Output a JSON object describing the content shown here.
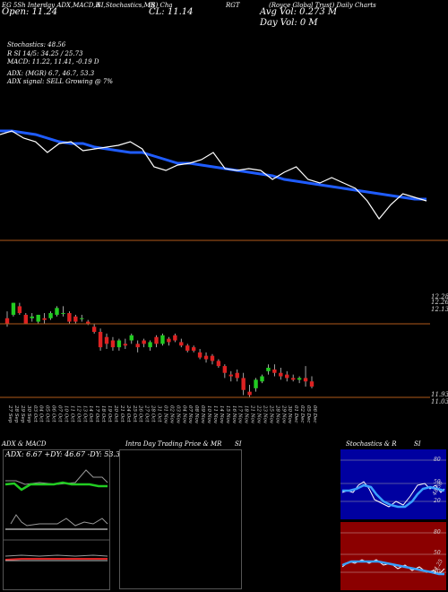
{
  "header": {
    "line1_left": "EG 5Sh Interday ADX,MACD,R",
    "line1_mid": "SI,Stochastics,MR",
    "line1_c": "(S) Cha",
    "line1_rgt": "RGT",
    "line1_right": "(Royce Global Trust) Daily Charts",
    "cl_label": "CL: 11.14",
    "open_label": "Open: 11.24",
    "avg_vol": "Avg Vol: 0.273  M",
    "day_vol": "Day Vol: 0   M",
    "stoch": "Stochastics: 48.56",
    "rsi": "R          SI 14/5: 34.25 / 25.73",
    "macd": "MACD: 11.22,  11.41,  -0.19 D",
    "adx": "ADX:                    (MGR) 6.7,  46.7,  53.3",
    "adx_signal": "ADX  signal: SELL Growing @ 7%"
  },
  "price_axis": {
    "top_a": "12.28",
    "top_b": "12.26",
    "mid": "12.13",
    "low_a": "11.93",
    "low_b": "11.03"
  },
  "dates": [
    "27 Sep",
    "28 Sep",
    "29 Sep",
    "30 Sep",
    "03 Oct",
    "04 Oct",
    "05 Oct",
    "06 Oct",
    "07 Oct",
    "10 Oct",
    "11 Oct",
    "12 Oct",
    "13 Oct",
    "14 Oct",
    "17 Oct",
    "18 Oct",
    "19 Oct",
    "20 Oct",
    "21 Oct",
    "24 Oct",
    "25 Oct",
    "26 Oct",
    "27 Oct",
    "28 Oct",
    "31 Oct",
    "01 Nov",
    "02 Nov",
    "03 Nov",
    "04 Nov",
    "07 Nov",
    "08 Nov",
    "09 Nov",
    "10 Nov",
    "11 Nov",
    "14 Nov",
    "15 Nov",
    "16 Nov",
    "17 Nov",
    "18 Nov",
    "21 Nov",
    "22 Nov",
    "23 Nov",
    "25 Nov",
    "28 Nov",
    "29 Nov",
    "30 Nov",
    "01 Dec",
    "02 Dec",
    "05 Dec",
    "06 Dec"
  ],
  "panels": {
    "adx_title": "ADX  & MACD",
    "adx_values": "ADX: 6.67  +DY: 46.67 -DY: 53.33",
    "intraday_title": "Intra  Day Trading Price  & MR",
    "intraday_si": "SI",
    "stoch_title": "Stochastics & R",
    "stoch_si": "SI",
    "stoch_ticks": [
      "80",
      "50",
      "20"
    ],
    "rsi_ticks": [
      "80",
      "50",
      "20"
    ],
    "stoch_value": "48.56",
    "rsi_value": "34.25"
  },
  "colors": {
    "ema": "#1f5cff",
    "price": "#ffffff",
    "up": "#22cc22",
    "down": "#dd2222",
    "axis_line": "#b05a1a",
    "rsi_bg": "#8b0000",
    "stoch_bg": "#0000a0"
  },
  "chart_data": [
    {
      "type": "line",
      "series": [
        {
          "values": [
            12.62,
            12.62,
            12.61,
            12.6,
            12.58,
            12.56,
            12.55,
            12.55,
            12.53,
            12.52,
            12.51,
            12.5,
            12.5,
            12.48,
            12.46,
            12.44,
            12.44,
            12.43,
            12.42,
            12.41,
            12.4,
            12.39,
            12.38,
            12.37,
            12.35,
            12.34,
            12.33,
            12.32,
            12.31,
            12.3,
            12.29,
            12.28,
            12.27,
            12.26,
            12.25,
            12.24,
            12.24
          ]
        },
        {
          "values": [
            12.6,
            12.62,
            12.58,
            12.56,
            12.5,
            12.55,
            12.56,
            12.51,
            12.52,
            12.53,
            12.54,
            12.56,
            12.52,
            12.42,
            12.4,
            12.43,
            12.44,
            12.46,
            12.5,
            12.41,
            12.4,
            12.41,
            12.4,
            12.35,
            12.39,
            12.42,
            12.35,
            12.33,
            12.36,
            12.33,
            12.3,
            12.23,
            12.13,
            12.21,
            12.27,
            12.25,
            12.23
          ]
        }
      ]
    },
    {
      "type": "candlestick",
      "series": [
        {
          "values": [
            [
              12.15,
              12.19,
              12.12,
              12.1
            ],
            [
              12.17,
              12.24,
              12.24,
              12.16
            ],
            [
              12.22,
              12.24,
              12.18,
              12.17
            ],
            [
              12.17,
              12.18,
              12.12,
              12.12
            ],
            [
              12.15,
              12.18,
              12.16,
              12.13
            ],
            [
              12.13,
              12.17,
              12.17,
              12.12
            ],
            [
              12.15,
              12.18,
              12.14,
              12.12
            ],
            [
              12.15,
              12.19,
              12.18,
              12.14
            ],
            [
              12.17,
              12.22,
              12.21,
              12.16
            ],
            [
              12.18,
              12.22,
              12.18,
              12.16
            ],
            [
              12.18,
              12.19,
              12.13,
              12.12
            ],
            [
              12.16,
              12.17,
              12.13,
              12.12
            ],
            [
              12.15,
              12.17,
              12.15,
              12.13
            ],
            [
              12.13,
              12.14,
              12.12,
              12.11
            ],
            [
              12.1,
              12.12,
              12.07,
              12.06
            ],
            [
              12.07,
              12.09,
              11.98,
              11.96
            ],
            [
              12.04,
              12.06,
              12.0,
              11.97
            ],
            [
              12.02,
              12.04,
              11.98,
              11.96
            ],
            [
              11.98,
              12.03,
              12.02,
              11.96
            ],
            [
              12.0,
              12.03,
              11.99,
              11.97
            ],
            [
              12.02,
              12.06,
              12.05,
              12.0
            ],
            [
              12.0,
              12.02,
              11.98,
              11.95
            ],
            [
              12.02,
              12.03,
              12.0,
              11.98
            ],
            [
              11.98,
              12.02,
              12.01,
              11.96
            ],
            [
              12.04,
              12.05,
              12.0,
              11.98
            ],
            [
              12.0,
              12.06,
              12.05,
              11.99
            ],
            [
              12.03,
              12.04,
              12.01,
              11.99
            ],
            [
              12.05,
              12.06,
              12.02,
              12.01
            ],
            [
              12.01,
              12.03,
              11.99,
              11.98
            ],
            [
              11.99,
              12.0,
              11.96,
              11.95
            ],
            [
              11.98,
              11.99,
              11.96,
              11.95
            ],
            [
              11.95,
              11.97,
              11.92,
              11.91
            ],
            [
              11.93,
              11.95,
              11.91,
              11.89
            ],
            [
              11.93,
              11.94,
              11.9,
              11.88
            ],
            [
              11.9,
              11.91,
              11.87,
              11.86
            ],
            [
              11.87,
              11.88,
              11.83,
              11.8
            ],
            [
              11.82,
              11.84,
              11.81,
              11.78
            ],
            [
              11.83,
              11.85,
              11.8,
              11.78
            ],
            [
              11.8,
              11.83,
              11.73,
              11.7
            ],
            [
              11.72,
              11.76,
              11.7,
              11.69
            ],
            [
              11.74,
              11.8,
              11.79,
              11.72
            ],
            [
              11.78,
              11.82,
              11.81,
              11.77
            ],
            [
              11.84,
              11.88,
              11.86,
              11.82
            ],
            [
              11.85,
              11.88,
              11.83,
              11.81
            ],
            [
              11.83,
              11.86,
              11.81,
              11.79
            ],
            [
              11.82,
              11.84,
              11.8,
              11.78
            ],
            [
              11.8,
              11.82,
              11.79,
              11.78
            ],
            [
              11.79,
              11.81,
              11.8,
              11.77
            ],
            [
              11.8,
              11.87,
              11.78,
              11.75
            ],
            [
              11.78,
              11.81,
              11.75,
              11.74
            ]
          ]
        }
      ]
    }
  ]
}
